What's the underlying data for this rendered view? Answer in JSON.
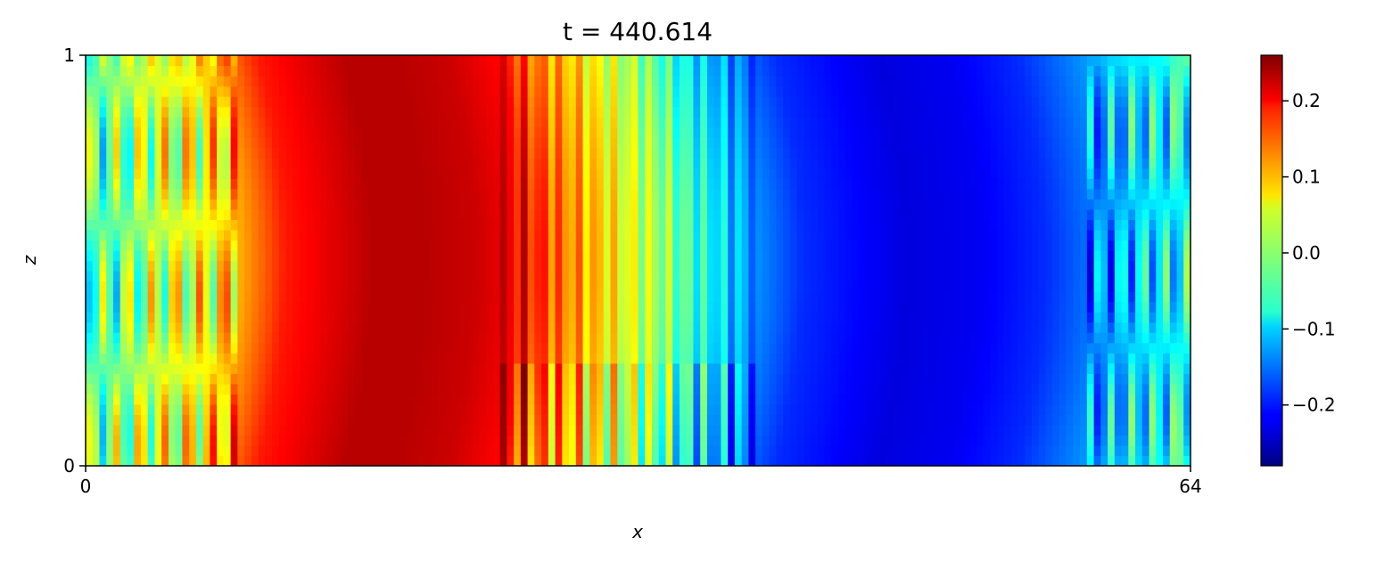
{
  "chart_data": {
    "type": "heatmap",
    "title": "t = 440.614",
    "xlabel": "x",
    "ylabel": "z",
    "xlim": [
      0,
      64
    ],
    "ylim": [
      0,
      1
    ],
    "x_ticks": [
      "0",
      "64"
    ],
    "y_ticks": [
      "0",
      "1"
    ],
    "colormap": "jet",
    "color_range": [
      -0.28,
      0.26
    ],
    "colorbar_ticks": [
      {
        "value": 0.2,
        "label": "0.2"
      },
      {
        "value": 0.1,
        "label": "0.1"
      },
      {
        "value": 0.0,
        "label": "0.0"
      },
      {
        "value": -0.1,
        "label": "−0.1"
      },
      {
        "value": -0.2,
        "label": "−0.2"
      }
    ],
    "grid": false,
    "field_profile_along_x": {
      "x": [
        0,
        3,
        6,
        8,
        10,
        12,
        15,
        18,
        21,
        24,
        26,
        28,
        30,
        32,
        34,
        36,
        38,
        40,
        43,
        46,
        50,
        54,
        58,
        60,
        62,
        64
      ],
      "value": [
        -0.03,
        0.03,
        0.06,
        0.12,
        0.18,
        0.2,
        0.23,
        0.23,
        0.22,
        0.19,
        0.13,
        0.09,
        0.04,
        0.0,
        -0.06,
        -0.11,
        -0.15,
        -0.19,
        -0.21,
        -0.23,
        -0.22,
        -0.19,
        -0.13,
        -0.09,
        -0.08,
        -0.02
      ]
    }
  }
}
